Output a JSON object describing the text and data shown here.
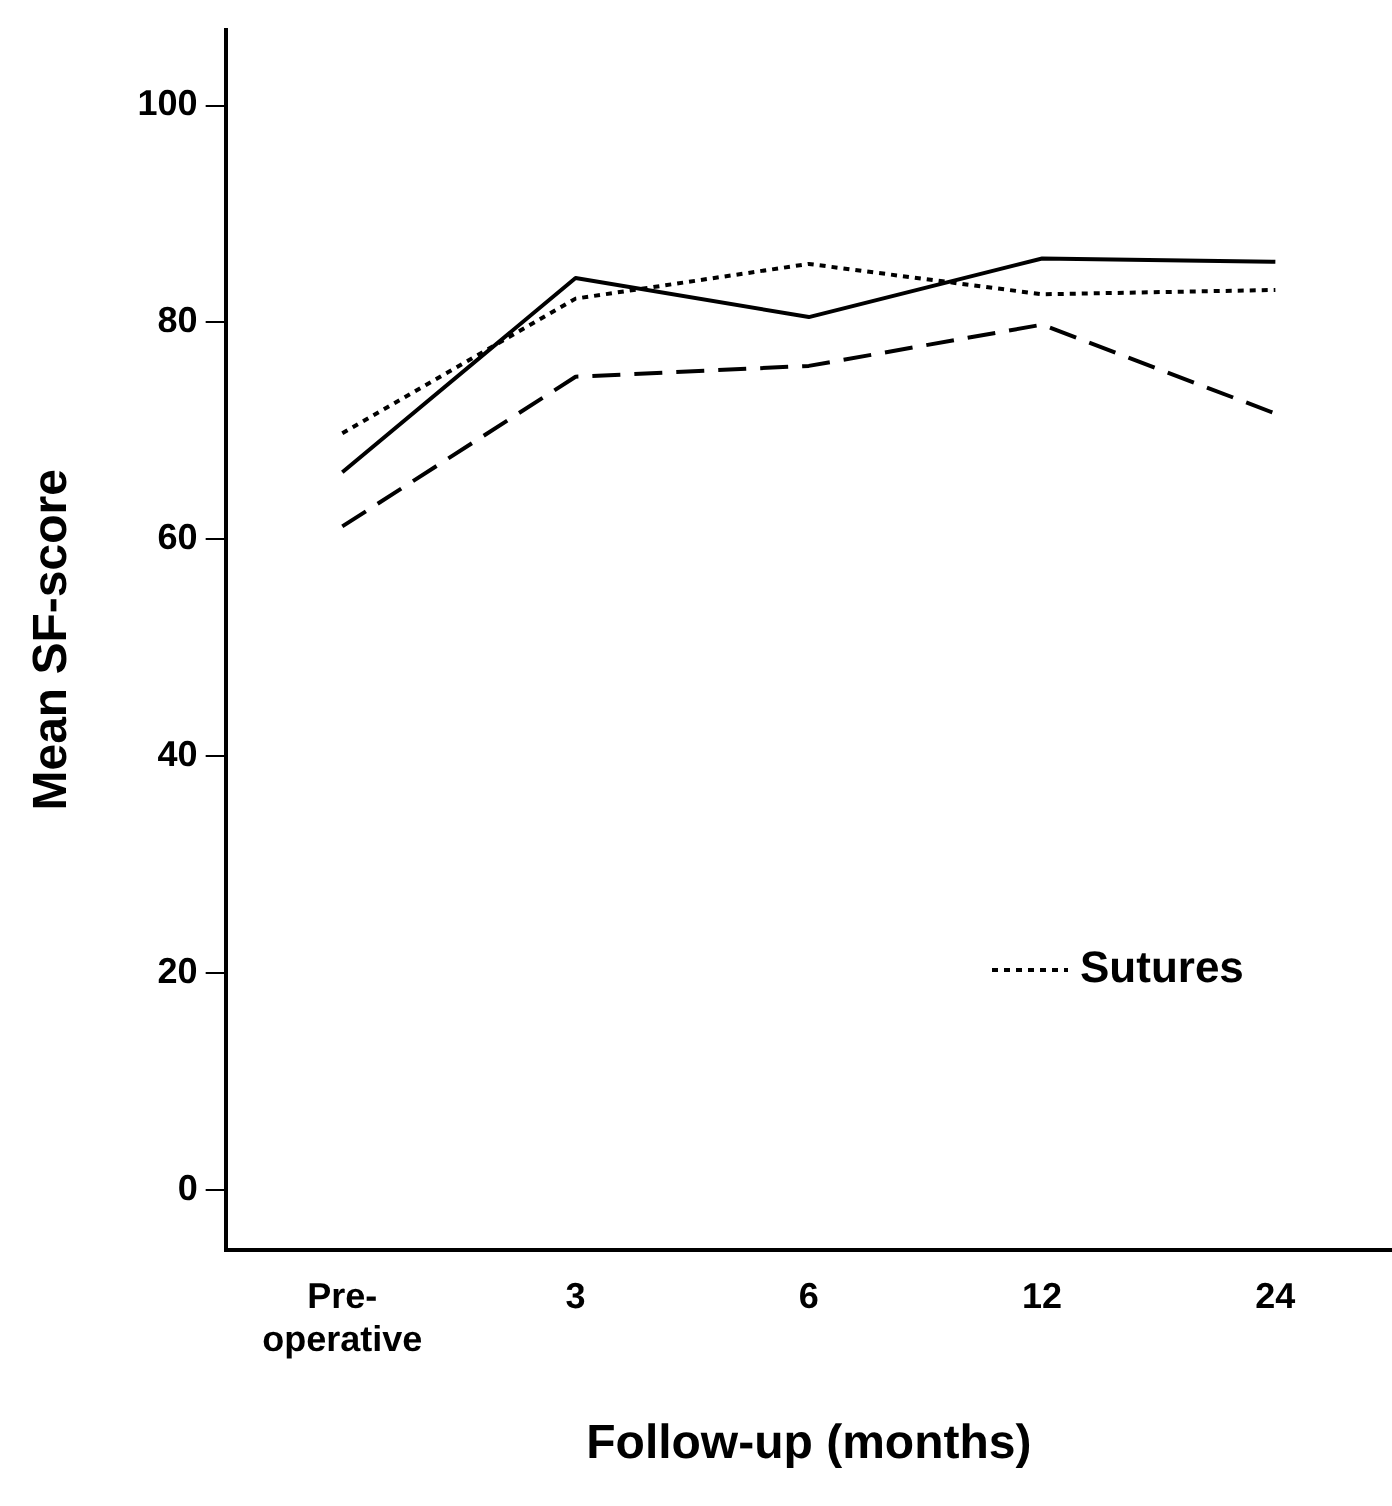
{
  "chart_data": {
    "type": "line",
    "xlabel": "Follow-up (months)",
    "ylabel": "Mean SF-score",
    "categories": [
      "Pre-operative",
      "3",
      "6",
      "12",
      "24"
    ],
    "series": [
      {
        "name": "Sutures",
        "color": "#000000",
        "line_style": "dotted",
        "values": [
          69.8,
          82.2,
          85.4,
          82.6,
          83.0
        ]
      },
      {
        "color": "#000000",
        "line_style": "dashed",
        "values": [
          61.2,
          75.0,
          76.0,
          79.8,
          71.6
        ]
      },
      {
        "color": "#000000",
        "line_style": "solid",
        "values": [
          66.2,
          84.1,
          80.5,
          85.9,
          85.6
        ]
      }
    ],
    "ylim": [
      -5.5,
      107
    ],
    "yticks": [
      0,
      20,
      40,
      60,
      80,
      100
    ],
    "grid": false,
    "legend": "bottom right",
    "marker": "none"
  }
}
